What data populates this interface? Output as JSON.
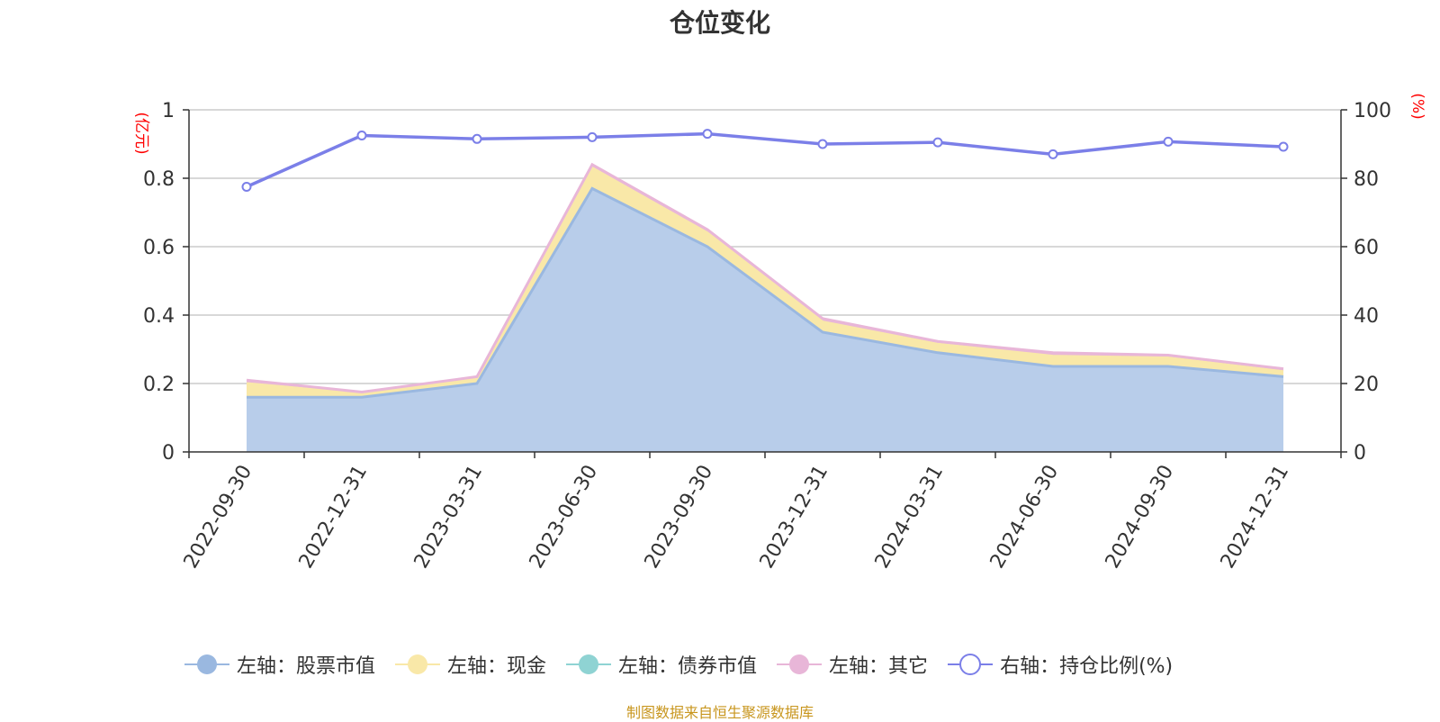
{
  "chart_data": {
    "type": "area",
    "title": "仓位变化",
    "categories": [
      "2022-09-30",
      "2022-12-31",
      "2023-03-31",
      "2023-06-30",
      "2023-09-30",
      "2023-12-31",
      "2024-03-31",
      "2024-06-30",
      "2024-09-30",
      "2024-12-31"
    ],
    "left_axis": {
      "unit": "(亿元)",
      "ylim": [
        0,
        1
      ],
      "ticks": [
        "0",
        "0.2",
        "0.4",
        "0.6",
        "0.8",
        "1"
      ],
      "color": "#ff0000"
    },
    "right_axis": {
      "unit": "(%)",
      "ylim": [
        0,
        100
      ],
      "ticks": [
        "0",
        "20",
        "40",
        "60",
        "80",
        "100"
      ],
      "color": "#ff0000"
    },
    "grid": true,
    "legend_position": "bottom",
    "series": [
      {
        "name": "左轴：股票市值",
        "type": "stacked-area",
        "axis": "left",
        "color": "#9ab8e0",
        "values": [
          0.16,
          0.16,
          0.2,
          0.77,
          0.6,
          0.35,
          0.29,
          0.25,
          0.25,
          0.22
        ]
      },
      {
        "name": "左轴：现金",
        "type": "stacked-area",
        "axis": "left",
        "color": "#f9e8a8",
        "values": [
          0.04,
          0.01,
          0.015,
          0.06,
          0.04,
          0.03,
          0.025,
          0.03,
          0.025,
          0.015
        ]
      },
      {
        "name": "左轴：债券市值",
        "type": "stacked-area",
        "axis": "left",
        "color": "#8fd3d3",
        "values": [
          0,
          0,
          0,
          0,
          0,
          0,
          0,
          0,
          0,
          0
        ]
      },
      {
        "name": "左轴：其它",
        "type": "stacked-area",
        "axis": "left",
        "color": "#e8b6d8",
        "values": [
          0.01,
          0.005,
          0.005,
          0.01,
          0.01,
          0.01,
          0.008,
          0.01,
          0.008,
          0.008
        ]
      },
      {
        "name": "右轴：持仓比例(%)",
        "type": "line",
        "axis": "right",
        "color": "#7b7fe8",
        "values": [
          77.5,
          92.5,
          91.5,
          92.0,
          93.0,
          90.0,
          90.5,
          87.0,
          90.7,
          89.2
        ]
      }
    ]
  },
  "footer": {
    "source": "制图数据来自恒生聚源数据库"
  }
}
